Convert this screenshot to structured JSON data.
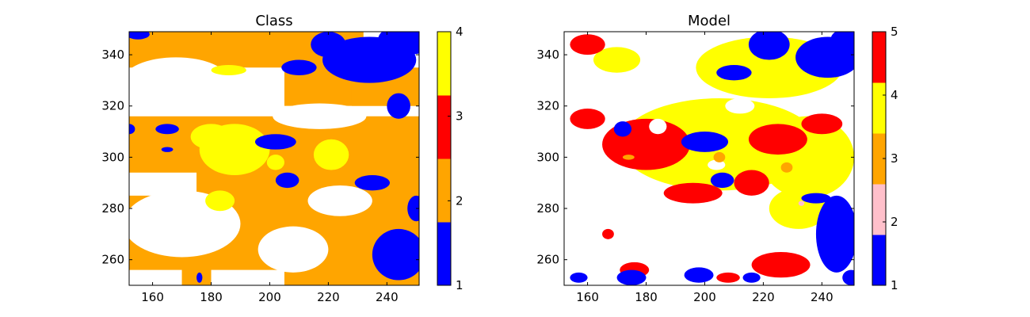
{
  "chart_data": [
    {
      "type": "heatmap",
      "title": "Class",
      "xlabel": "",
      "ylabel": "",
      "xlim": [
        152,
        251
      ],
      "ylim": [
        250,
        349
      ],
      "xticks": [
        160,
        180,
        200,
        220,
        240
      ],
      "yticks": [
        260,
        280,
        300,
        320,
        340
      ],
      "colorbar": {
        "ticks": [
          1,
          2,
          3,
          4
        ],
        "range": [
          1,
          4
        ],
        "colors": [
          "#0000ff",
          "#ffa500",
          "#ff0000",
          "#ffff00"
        ]
      },
      "background": "#ffffff",
      "regions": [
        {
          "color": "#ffa500",
          "kind": "rect",
          "x": [
            152,
            251
          ],
          "y": [
            250,
            316
          ]
        },
        {
          "color": "#ffa500",
          "kind": "rect",
          "x": [
            152,
            215
          ],
          "y": [
            335,
            349
          ]
        },
        {
          "color": "#ffa500",
          "kind": "rect",
          "x": [
            205,
            232
          ],
          "y": [
            320,
            349
          ]
        },
        {
          "color": "#ffa500",
          "kind": "rect",
          "x": [
            228,
            251
          ],
          "y": [
            316,
            335
          ]
        },
        {
          "color": "#ffffff",
          "kind": "rect",
          "x": [
            152,
            251
          ],
          "y": [
            316,
            320
          ]
        },
        {
          "color": "#ffffff",
          "kind": "ellipse",
          "cx": 168,
          "cy": 330,
          "rx": 18,
          "ry": 9
        },
        {
          "color": "#ffffff",
          "kind": "ellipse",
          "cx": 217,
          "cy": 316,
          "rx": 16,
          "ry": 5
        },
        {
          "color": "#ffffff",
          "kind": "ellipse",
          "cx": 170,
          "cy": 274,
          "rx": 20,
          "ry": 13
        },
        {
          "color": "#ffffff",
          "kind": "ellipse",
          "cx": 208,
          "cy": 264,
          "rx": 12,
          "ry": 9
        },
        {
          "color": "#ffffff",
          "kind": "ellipse",
          "cx": 224,
          "cy": 283,
          "rx": 11,
          "ry": 6
        },
        {
          "color": "#ffffff",
          "kind": "rect",
          "x": [
            152,
            175
          ],
          "y": [
            285,
            294
          ]
        },
        {
          "color": "#ffffff",
          "kind": "rect",
          "x": [
            152,
            170
          ],
          "y": [
            250,
            256
          ]
        },
        {
          "color": "#ffffff",
          "kind": "rect",
          "x": [
            180,
            205
          ],
          "y": [
            250,
            256
          ]
        },
        {
          "color": "#ffff00",
          "kind": "ellipse",
          "cx": 188,
          "cy": 303,
          "rx": 12,
          "ry": 10
        },
        {
          "color": "#ffff00",
          "kind": "ellipse",
          "cx": 180,
          "cy": 308,
          "rx": 7,
          "ry": 5
        },
        {
          "color": "#ffff00",
          "kind": "ellipse",
          "cx": 221,
          "cy": 301,
          "rx": 6,
          "ry": 6
        },
        {
          "color": "#ffff00",
          "kind": "ellipse",
          "cx": 183,
          "cy": 283,
          "rx": 5,
          "ry": 4
        },
        {
          "color": "#ffff00",
          "kind": "ellipse",
          "cx": 186,
          "cy": 334,
          "rx": 6,
          "ry": 2
        },
        {
          "color": "#ffff00",
          "kind": "ellipse",
          "cx": 202,
          "cy": 298,
          "rx": 3,
          "ry": 3
        },
        {
          "color": "#0000ff",
          "kind": "ellipse",
          "cx": 234,
          "cy": 338,
          "rx": 16,
          "ry": 9
        },
        {
          "color": "#0000ff",
          "kind": "ellipse",
          "cx": 247,
          "cy": 346,
          "rx": 10,
          "ry": 6
        },
        {
          "color": "#0000ff",
          "kind": "ellipse",
          "cx": 244,
          "cy": 320,
          "rx": 4,
          "ry": 5
        },
        {
          "color": "#0000ff",
          "kind": "ellipse",
          "cx": 220,
          "cy": 344,
          "rx": 6,
          "ry": 5
        },
        {
          "color": "#0000ff",
          "kind": "ellipse",
          "cx": 210,
          "cy": 335,
          "rx": 6,
          "ry": 3
        },
        {
          "color": "#0000ff",
          "kind": "ellipse",
          "cx": 155,
          "cy": 348,
          "rx": 4,
          "ry": 2
        },
        {
          "color": "#0000ff",
          "kind": "ellipse",
          "cx": 165,
          "cy": 311,
          "rx": 4,
          "ry": 2
        },
        {
          "color": "#0000ff",
          "kind": "ellipse",
          "cx": 152,
          "cy": 311,
          "rx": 2,
          "ry": 2
        },
        {
          "color": "#0000ff",
          "kind": "ellipse",
          "cx": 165,
          "cy": 303,
          "rx": 2,
          "ry": 1
        },
        {
          "color": "#0000ff",
          "kind": "ellipse",
          "cx": 202,
          "cy": 306,
          "rx": 7,
          "ry": 3
        },
        {
          "color": "#0000ff",
          "kind": "ellipse",
          "cx": 206,
          "cy": 291,
          "rx": 4,
          "ry": 3
        },
        {
          "color": "#0000ff",
          "kind": "ellipse",
          "cx": 235,
          "cy": 290,
          "rx": 6,
          "ry": 3
        },
        {
          "color": "#0000ff",
          "kind": "ellipse",
          "cx": 244,
          "cy": 262,
          "rx": 9,
          "ry": 10
        },
        {
          "color": "#0000ff",
          "kind": "ellipse",
          "cx": 250,
          "cy": 280,
          "rx": 3,
          "ry": 5
        },
        {
          "color": "#0000ff",
          "kind": "ellipse",
          "cx": 176,
          "cy": 253,
          "rx": 1,
          "ry": 2
        }
      ]
    },
    {
      "type": "heatmap",
      "title": "Model",
      "xlabel": "",
      "ylabel": "",
      "xlim": [
        152,
        251
      ],
      "ylim": [
        250,
        349
      ],
      "xticks": [
        160,
        180,
        200,
        220,
        240
      ],
      "yticks": [
        260,
        280,
        300,
        320,
        340
      ],
      "colorbar": {
        "ticks": [
          1,
          2,
          3,
          4,
          5
        ],
        "range": [
          1,
          5
        ],
        "colors": [
          "#0000ff",
          "#ffc0cb",
          "#ffa500",
          "#ffff00",
          "#ff0000"
        ]
      },
      "background": "#ffffff",
      "regions": [
        {
          "color": "#ffff00",
          "kind": "ellipse",
          "cx": 205,
          "cy": 305,
          "rx": 34,
          "ry": 18
        },
        {
          "color": "#ffff00",
          "kind": "ellipse",
          "cx": 235,
          "cy": 300,
          "rx": 16,
          "ry": 16
        },
        {
          "color": "#ffff00",
          "kind": "ellipse",
          "cx": 222,
          "cy": 335,
          "rx": 25,
          "ry": 12
        },
        {
          "color": "#ffff00",
          "kind": "ellipse",
          "cx": 232,
          "cy": 280,
          "rx": 10,
          "ry": 8
        },
        {
          "color": "#ffff00",
          "kind": "ellipse",
          "cx": 170,
          "cy": 338,
          "rx": 8,
          "ry": 5
        },
        {
          "color": "#ff0000",
          "kind": "ellipse",
          "cx": 180,
          "cy": 305,
          "rx": 15,
          "ry": 10
        },
        {
          "color": "#ff0000",
          "kind": "ellipse",
          "cx": 196,
          "cy": 286,
          "rx": 10,
          "ry": 4
        },
        {
          "color": "#ff0000",
          "kind": "ellipse",
          "cx": 216,
          "cy": 290,
          "rx": 6,
          "ry": 5
        },
        {
          "color": "#ff0000",
          "kind": "ellipse",
          "cx": 225,
          "cy": 307,
          "rx": 10,
          "ry": 6
        },
        {
          "color": "#ff0000",
          "kind": "ellipse",
          "cx": 160,
          "cy": 315,
          "rx": 6,
          "ry": 4
        },
        {
          "color": "#ff0000",
          "kind": "ellipse",
          "cx": 240,
          "cy": 313,
          "rx": 7,
          "ry": 4
        },
        {
          "color": "#ff0000",
          "kind": "ellipse",
          "cx": 226,
          "cy": 258,
          "rx": 10,
          "ry": 5
        },
        {
          "color": "#ff0000",
          "kind": "ellipse",
          "cx": 176,
          "cy": 256,
          "rx": 5,
          "ry": 3
        },
        {
          "color": "#ff0000",
          "kind": "ellipse",
          "cx": 160,
          "cy": 344,
          "rx": 6,
          "ry": 4
        },
        {
          "color": "#ff0000",
          "kind": "ellipse",
          "cx": 208,
          "cy": 253,
          "rx": 4,
          "ry": 2
        },
        {
          "color": "#ff0000",
          "kind": "ellipse",
          "cx": 167,
          "cy": 270,
          "rx": 2,
          "ry": 2
        },
        {
          "color": "#0000ff",
          "kind": "ellipse",
          "cx": 222,
          "cy": 344,
          "rx": 7,
          "ry": 6
        },
        {
          "color": "#0000ff",
          "kind": "ellipse",
          "cx": 242,
          "cy": 339,
          "rx": 11,
          "ry": 8
        },
        {
          "color": "#0000ff",
          "kind": "ellipse",
          "cx": 248,
          "cy": 346,
          "rx": 5,
          "ry": 4
        },
        {
          "color": "#0000ff",
          "kind": "ellipse",
          "cx": 210,
          "cy": 333,
          "rx": 6,
          "ry": 3
        },
        {
          "color": "#0000ff",
          "kind": "ellipse",
          "cx": 200,
          "cy": 306,
          "rx": 8,
          "ry": 4
        },
        {
          "color": "#0000ff",
          "kind": "ellipse",
          "cx": 206,
          "cy": 291,
          "rx": 4,
          "ry": 3
        },
        {
          "color": "#0000ff",
          "kind": "ellipse",
          "cx": 172,
          "cy": 311,
          "rx": 3,
          "ry": 3
        },
        {
          "color": "#0000ff",
          "kind": "ellipse",
          "cx": 245,
          "cy": 270,
          "rx": 7,
          "ry": 15
        },
        {
          "color": "#0000ff",
          "kind": "ellipse",
          "cx": 238,
          "cy": 284,
          "rx": 5,
          "ry": 2
        },
        {
          "color": "#0000ff",
          "kind": "ellipse",
          "cx": 175,
          "cy": 253,
          "rx": 5,
          "ry": 3
        },
        {
          "color": "#0000ff",
          "kind": "ellipse",
          "cx": 198,
          "cy": 254,
          "rx": 5,
          "ry": 3
        },
        {
          "color": "#0000ff",
          "kind": "ellipse",
          "cx": 157,
          "cy": 253,
          "rx": 3,
          "ry": 2
        },
        {
          "color": "#0000ff",
          "kind": "ellipse",
          "cx": 216,
          "cy": 253,
          "rx": 3,
          "ry": 2
        },
        {
          "color": "#0000ff",
          "kind": "ellipse",
          "cx": 250,
          "cy": 253,
          "rx": 3,
          "ry": 3
        },
        {
          "color": "#ffffff",
          "kind": "ellipse",
          "cx": 204,
          "cy": 297,
          "rx": 3,
          "ry": 2
        },
        {
          "color": "#ffffff",
          "kind": "ellipse",
          "cx": 184,
          "cy": 312,
          "rx": 3,
          "ry": 3
        },
        {
          "color": "#ffffff",
          "kind": "ellipse",
          "cx": 212,
          "cy": 320,
          "rx": 5,
          "ry": 3
        },
        {
          "color": "#ffa500",
          "kind": "ellipse",
          "cx": 205,
          "cy": 300,
          "rx": 2,
          "ry": 2
        },
        {
          "color": "#ffa500",
          "kind": "ellipse",
          "cx": 228,
          "cy": 296,
          "rx": 2,
          "ry": 2
        },
        {
          "color": "#ffa500",
          "kind": "ellipse",
          "cx": 174,
          "cy": 300,
          "rx": 2,
          "ry": 1
        },
        {
          "color": "#ffc0cb",
          "kind": "ellipse",
          "cx": 233,
          "cy": 282,
          "rx": 1,
          "ry": 1
        }
      ]
    }
  ]
}
